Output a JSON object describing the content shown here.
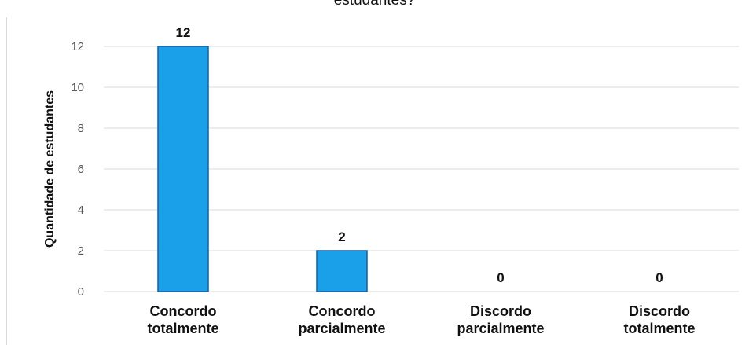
{
  "chart_data": {
    "type": "bar",
    "title": "estudantes?",
    "ylabel": "Quantidade de estudantes",
    "xlabel": "",
    "categories": [
      [
        "Concordo",
        "totalmente"
      ],
      [
        "Concordo",
        "parcialmente"
      ],
      [
        "Discordo",
        "parcialmente"
      ],
      [
        "Discordo",
        "totalmente"
      ]
    ],
    "values": [
      12,
      2,
      0,
      0
    ],
    "data_labels": [
      "12",
      "2",
      "0",
      "0"
    ],
    "ylim": [
      0,
      12
    ],
    "yticks": [
      0,
      2,
      4,
      6,
      8,
      10,
      12
    ],
    "grid": true,
    "colors": {
      "bar_fill": "#1aa0e8",
      "bar_stroke": "#1a5f9e",
      "grid": "#d9d9d9",
      "text": "#111111",
      "tick": "#595959"
    }
  }
}
